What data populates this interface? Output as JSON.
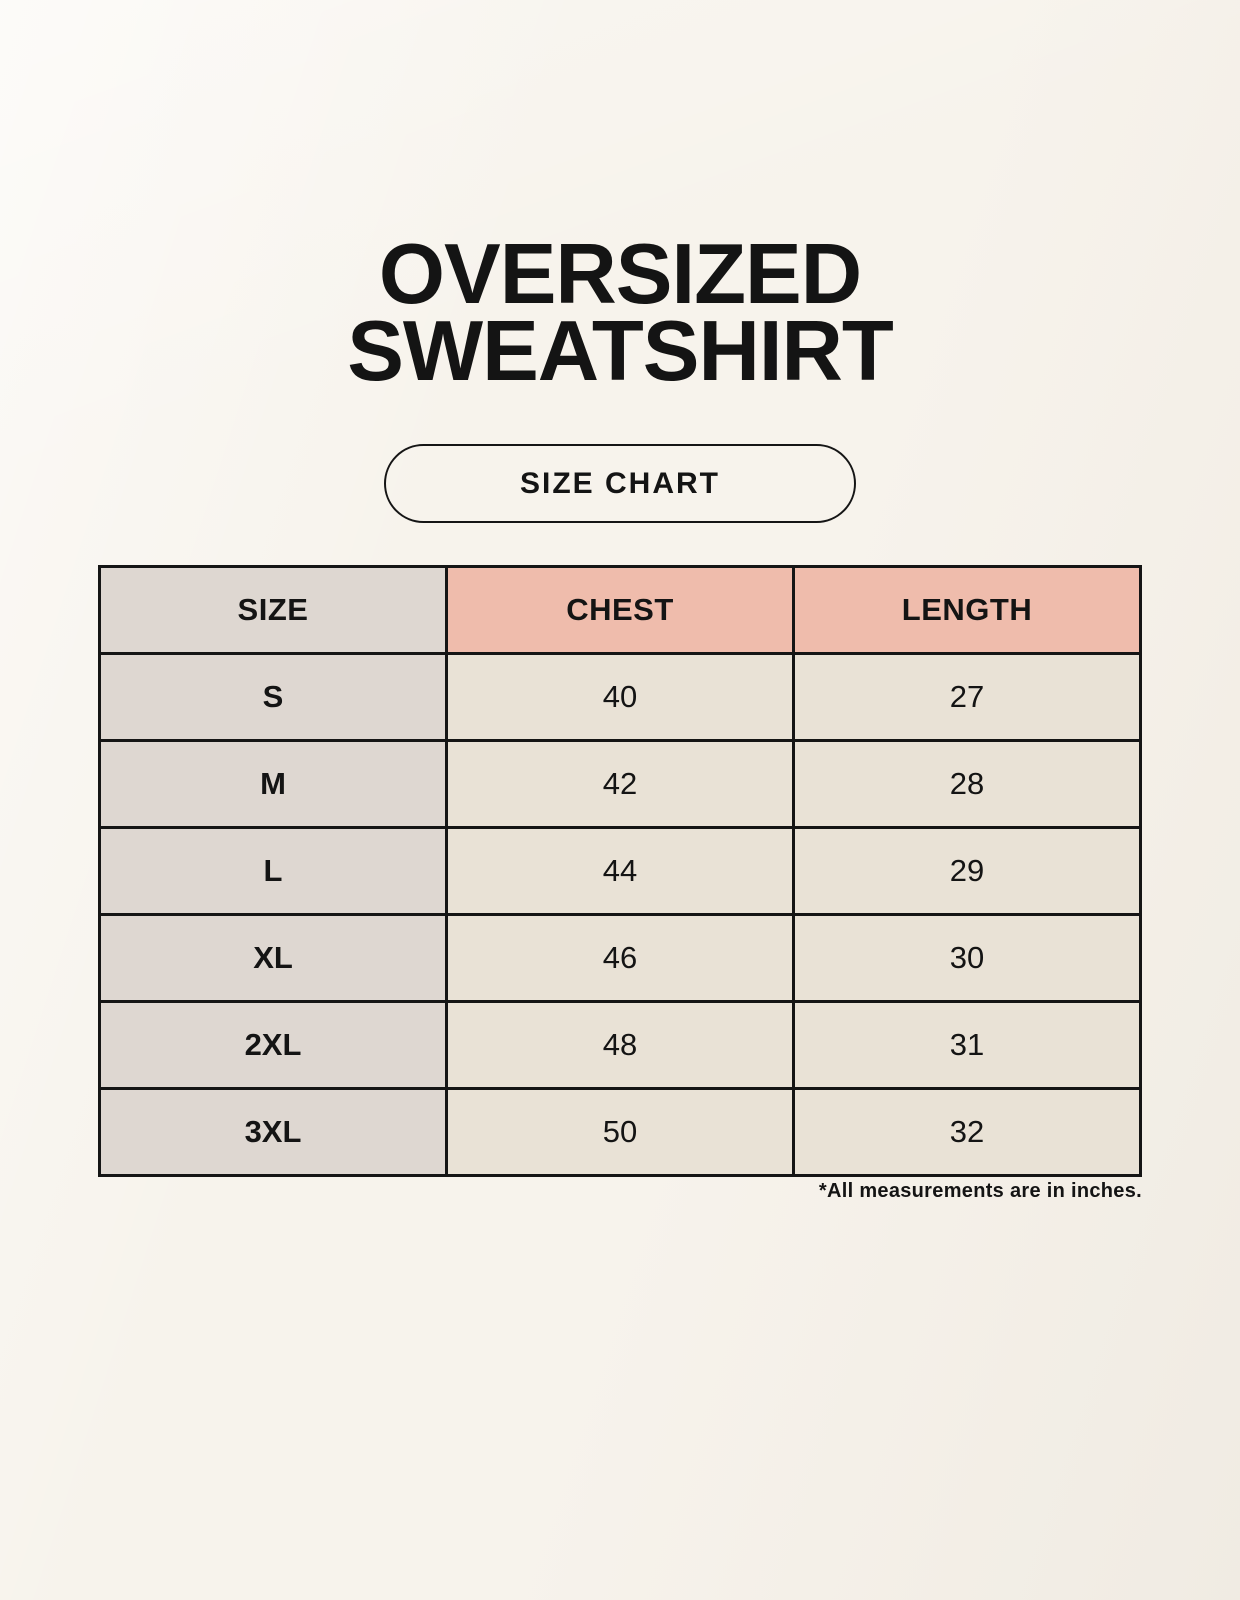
{
  "title": {
    "line1": "OVERSIZED",
    "line2": "SWEATSHIRT"
  },
  "size_chart_button": {
    "label": "SIZE CHART"
  },
  "table": {
    "columns": [
      "SIZE",
      "CHEST",
      "LENGTH"
    ],
    "rows": [
      {
        "size": "S",
        "chest": "40",
        "length": "27"
      },
      {
        "size": "M",
        "chest": "42",
        "length": "28"
      },
      {
        "size": "L",
        "chest": "44",
        "length": "29"
      },
      {
        "size": "XL",
        "chest": "46",
        "length": "30"
      },
      {
        "size": "2XL",
        "chest": "48",
        "length": "31"
      },
      {
        "size": "3XL",
        "chest": "50",
        "length": "32"
      }
    ]
  },
  "footnote": "*All measurements are in inches.",
  "colors": {
    "background": "#F7F3EC",
    "header_size_bg": "#DED7D1",
    "header_measure_bg": "#EFBCAC",
    "row_label_bg": "#DED7D1",
    "cell_bg": "#E9E2D6",
    "border": "#151515",
    "text": "#141414"
  },
  "chart_data": {
    "type": "table",
    "title": "OVERSIZED SWEATSHIRT",
    "columns": [
      "SIZE",
      "CHEST",
      "LENGTH"
    ],
    "rows": [
      [
        "S",
        40,
        27
      ],
      [
        "M",
        42,
        28
      ],
      [
        "L",
        44,
        29
      ],
      [
        "XL",
        46,
        30
      ],
      [
        "2XL",
        48,
        31
      ],
      [
        "3XL",
        50,
        32
      ]
    ],
    "units": "inches",
    "note": "*All measurements are in inches."
  }
}
